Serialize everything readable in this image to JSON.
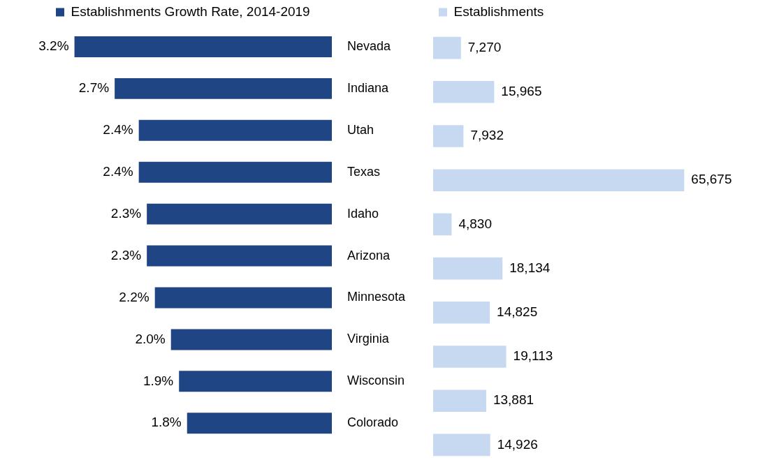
{
  "chart_data": [
    {
      "type": "bar",
      "orientation": "horizontal",
      "categories": [
        "Nevada",
        "Indiana",
        "Utah",
        "Texas",
        "Idaho",
        "Arizona",
        "Minnesota",
        "Virginia",
        "Wisconsin",
        "Colorado"
      ],
      "series": [
        {
          "name": "Establishments Growth Rate, 2014-2019",
          "color": "#1f4584",
          "values": [
            3.2,
            2.7,
            2.4,
            2.4,
            2.3,
            2.3,
            2.2,
            2.0,
            1.9,
            1.8
          ],
          "value_labels": [
            "3.2%",
            "2.7%",
            "2.4%",
            "2.4%",
            "2.3%",
            "2.3%",
            "2.2%",
            "2.0%",
            "1.9%",
            "1.8%"
          ]
        }
      ],
      "legend": "top left",
      "tick_labels": "y",
      "grid": false
    },
    {
      "type": "bar",
      "orientation": "horizontal",
      "categories": [
        null,
        null,
        null,
        null,
        null,
        null,
        null,
        null,
        null,
        null
      ],
      "series": [
        {
          "name": "Establishments",
          "color": "#c6d9f1",
          "values": [
            7270,
            15965,
            7932,
            65675,
            4830,
            18134,
            14825,
            19113,
            13881,
            14926
          ],
          "value_labels": [
            "7,270",
            "15,965",
            "7,932",
            "65,675",
            "4,830",
            "18,134",
            "14,825",
            "19,113",
            "13,881",
            "14,926"
          ]
        }
      ],
      "legend": "top left",
      "tick_labels": false,
      "grid": false
    }
  ]
}
